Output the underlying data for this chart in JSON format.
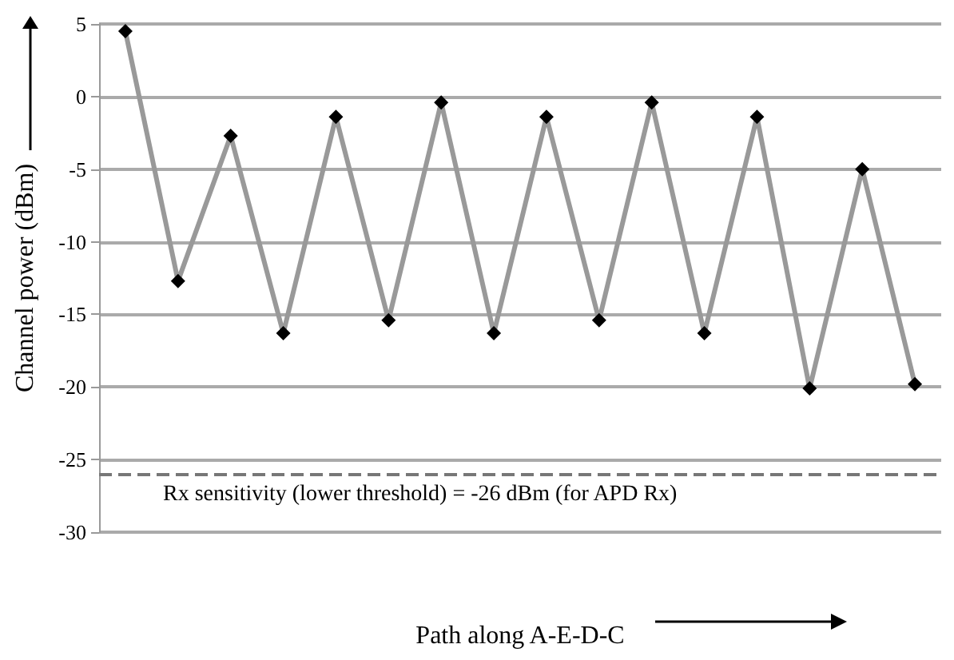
{
  "chart_data": {
    "type": "line",
    "xlabel": "Path along A-E-D-C",
    "ylabel": "Channel power (dBm)",
    "categories": [
      null,
      null,
      null,
      null,
      null,
      null,
      null,
      null,
      null,
      null,
      null,
      null,
      null,
      null,
      null,
      null
    ],
    "series": [
      {
        "color": "#999999",
        "values": [
          4.5,
          -12.7,
          -2.7,
          -16.3,
          -1.4,
          -15.4,
          -0.4,
          -16.3,
          -1.4,
          -15.4,
          -0.4,
          -16.3,
          -1.4,
          -20.1,
          -5.0,
          -19.8
        ]
      }
    ],
    "marker": "diamond",
    "line_style": "solid",
    "ylim": [
      -30,
      5
    ],
    "yticks": [
      -30,
      -25,
      -20,
      -15,
      -10,
      -5,
      0,
      5
    ],
    "grid": "y",
    "ref_lines": [
      {
        "axis": "y",
        "value": -26,
        "label": "Rx sensitivity (lower threshold) = -26 dBm (for APD Rx)",
        "color": "#777777",
        "line_style": "dashed"
      }
    ]
  }
}
